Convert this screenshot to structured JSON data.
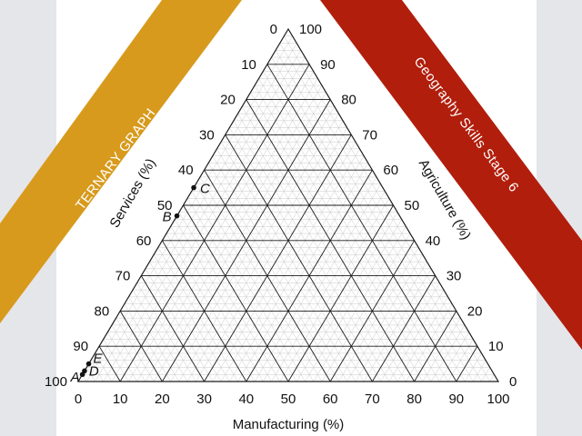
{
  "colors": {
    "side_panel": "#e4e6ea",
    "band_left": "#d89a1c",
    "band_right": "#b11e0c",
    "fine_grid": "#c9c9c9",
    "major_grid": "#1a1a1a",
    "text": "#111111"
  },
  "bands": {
    "left_text": "TERNARY GRAPH",
    "right_text": "Geography Skills Stage 6"
  },
  "chart_data": {
    "type": "ternary",
    "axes": {
      "bottom": {
        "label": "Manufacturing (%)",
        "ticks": [
          "0",
          "10",
          "20",
          "30",
          "40",
          "50",
          "60",
          "70",
          "80",
          "90",
          "100"
        ]
      },
      "left": {
        "label": "Services (%)",
        "ticks": [
          "0",
          "10",
          "20",
          "30",
          "40",
          "50",
          "60",
          "70",
          "80",
          "90",
          "100"
        ]
      },
      "right": {
        "label": "Agriculture (%)",
        "ticks": [
          "0",
          "10",
          "20",
          "30",
          "40",
          "50",
          "60",
          "70",
          "80",
          "90",
          "100"
        ]
      }
    },
    "major_step": 10,
    "minor_step": 2,
    "points": [
      {
        "label": "C",
        "services": 45,
        "manufacturing": 0,
        "agriculture": 55
      },
      {
        "label": "B",
        "services": 53,
        "manufacturing": 0,
        "agriculture": 47
      },
      {
        "label": "E",
        "services": 95,
        "manufacturing": 0,
        "agriculture": 5
      },
      {
        "label": "D",
        "services": 97,
        "manufacturing": 0,
        "agriculture": 3
      },
      {
        "label": "A",
        "services": 98,
        "manufacturing": 0,
        "agriculture": 2
      }
    ]
  }
}
